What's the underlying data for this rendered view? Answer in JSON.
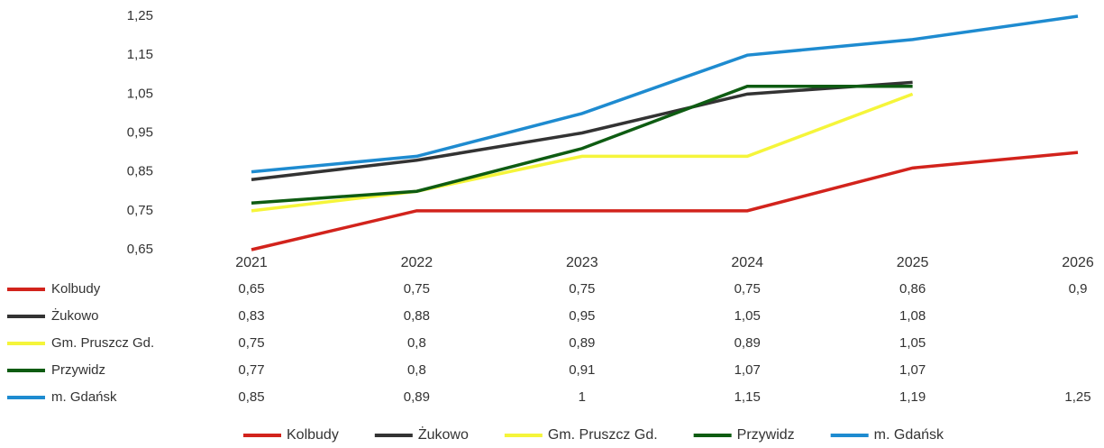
{
  "chart_data": {
    "type": "line",
    "categories": [
      "2021",
      "2022",
      "2023",
      "2024",
      "2025",
      "2026"
    ],
    "series": [
      {
        "name": "Kolbudy",
        "color": "#d2231c",
        "values": [
          0.65,
          0.75,
          0.75,
          0.75,
          0.86,
          0.9
        ],
        "value_labels": [
          "0,65",
          "0,75",
          "0,75",
          "0,75",
          "0,86",
          "0,9"
        ]
      },
      {
        "name": "Żukowo",
        "color": "#333333",
        "values": [
          0.83,
          0.88,
          0.95,
          1.05,
          1.08,
          null
        ],
        "value_labels": [
          "0,83",
          "0,88",
          "0,95",
          "1,05",
          "1,08",
          null
        ]
      },
      {
        "name": "Gm. Pruszcz Gd.",
        "color": "#f5f53a",
        "values": [
          0.75,
          0.8,
          0.89,
          0.89,
          1.05,
          null
        ],
        "value_labels": [
          "0,75",
          "0,8",
          "0,89",
          "0,89",
          "1,05",
          null
        ]
      },
      {
        "name": "Przywidz",
        "color": "#0e5c12",
        "values": [
          0.77,
          0.8,
          0.91,
          1.07,
          1.07,
          null
        ],
        "value_labels": [
          "0,77",
          "0,8",
          "0,91",
          "1,07",
          "1,07",
          null
        ]
      },
      {
        "name": "m. Gdańsk",
        "color": "#1e8bd0",
        "values": [
          0.85,
          0.89,
          1,
          1.15,
          1.19,
          1.25
        ],
        "value_labels": [
          "0,85",
          "0,89",
          "1",
          "1,15",
          "1,19",
          "1,25"
        ]
      }
    ],
    "ylim": [
      0.65,
      1.25
    ],
    "yticks": [
      {
        "value": 0.65,
        "label": "0,65"
      },
      {
        "value": 0.75,
        "label": "0,75"
      },
      {
        "value": 0.85,
        "label": "0,85"
      },
      {
        "value": 0.95,
        "label": "0,95"
      },
      {
        "value": 1.05,
        "label": "1,05"
      },
      {
        "value": 1.15,
        "label": "1,15"
      },
      {
        "value": 1.25,
        "label": "1,25"
      }
    ],
    "grid": false,
    "legend": "bottom"
  }
}
